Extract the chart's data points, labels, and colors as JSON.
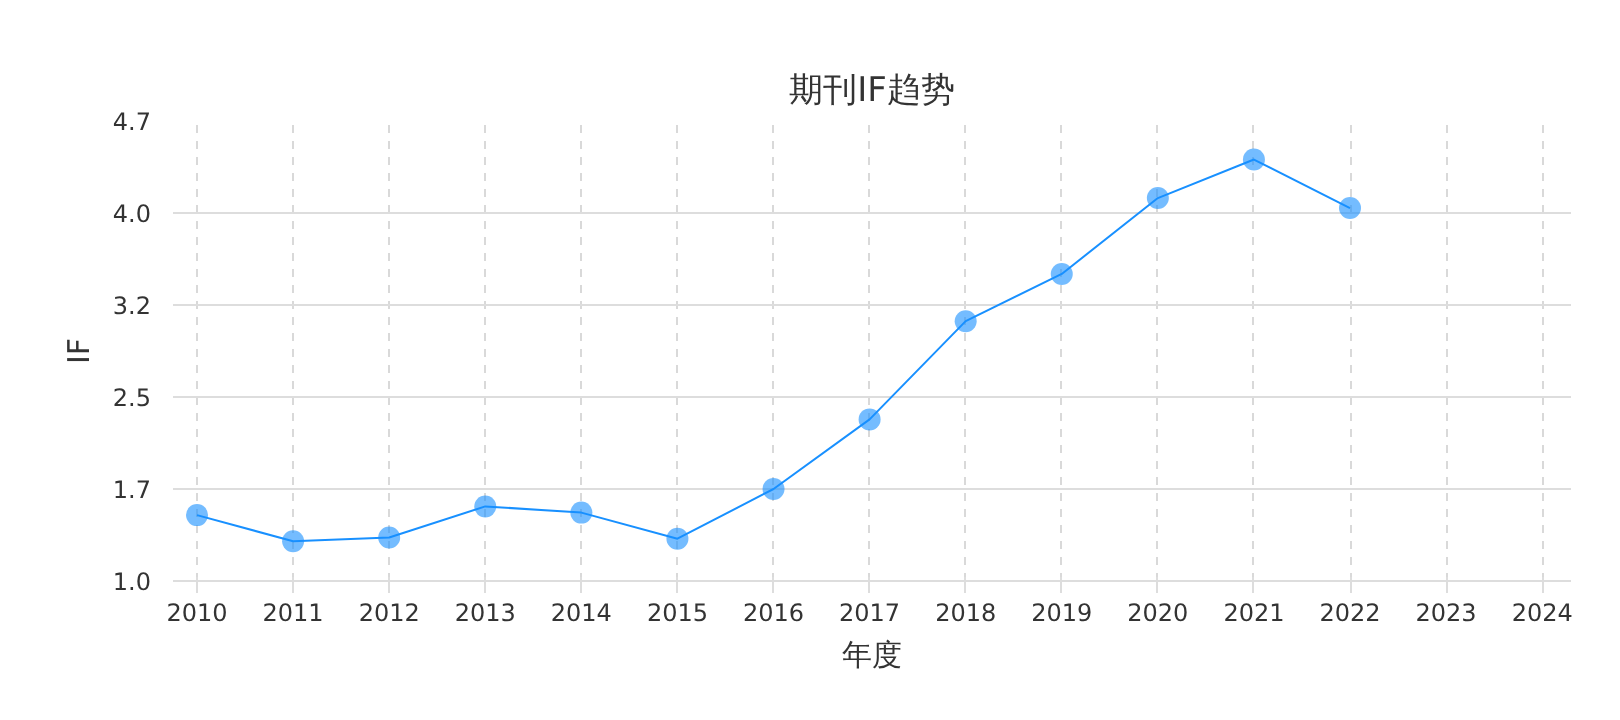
{
  "chart_data": {
    "type": "line",
    "title": "期刊IF趋势",
    "xlabel": "年度",
    "ylabel": "IF",
    "x": [
      2010,
      2011,
      2012,
      2013,
      2014,
      2015,
      2016,
      2017,
      2018,
      2019,
      2020,
      2021,
      2022
    ],
    "series": [
      {
        "color": "#1890ff",
        "values": [
          1.53,
          1.32,
          1.35,
          1.6,
          1.55,
          1.34,
          1.74,
          2.3,
          3.09,
          3.47,
          4.08,
          4.39,
          4.0
        ]
      }
    ],
    "xlim": [
      2009.75,
      2024.3
    ],
    "xticks": [
      2010,
      2011,
      2012,
      2013,
      2014,
      2015,
      2016,
      2017,
      2018,
      2019,
      2020,
      2021,
      2022,
      2023,
      2024
    ],
    "ylim": [
      1.0,
      4.7
    ],
    "yticks": [
      {
        "value": 1.0,
        "label": "1.0"
      },
      {
        "value": 1.74,
        "label": "1.7"
      },
      {
        "value": 2.48,
        "label": "2.5"
      },
      {
        "value": 3.22,
        "label": "3.2"
      },
      {
        "value": 3.96,
        "label": "4.0"
      },
      {
        "value": 4.7,
        "label": "4.7"
      }
    ],
    "grid": true,
    "marker": "circle",
    "line_style": "solid"
  }
}
